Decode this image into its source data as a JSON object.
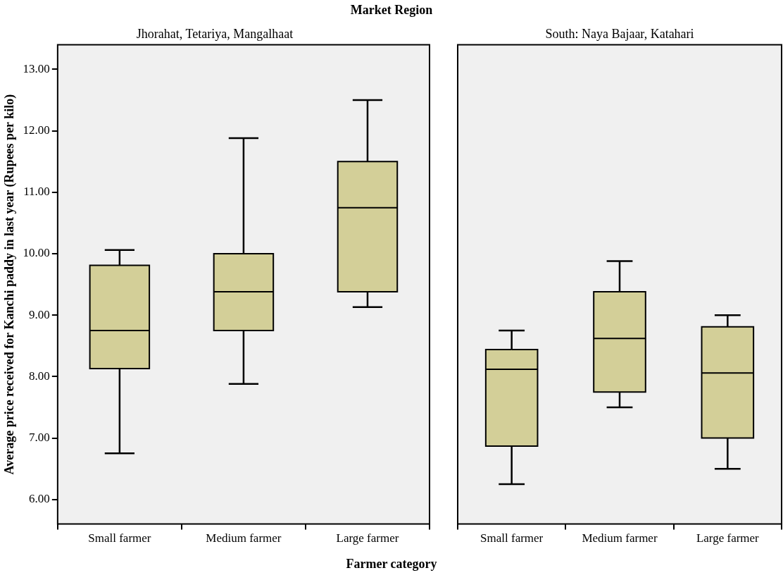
{
  "chart_data": [
    {
      "type": "box",
      "title": "Jhorahat, Tetariya, Mangalhaat",
      "annotations": [
        "Market Region"
      ],
      "xlabel": "Farmer category",
      "ylabel": "Average price received for Kanchi paddy in last year (Rupees per kilo)",
      "categories": [
        "Small farmer",
        "Medium farmer",
        "Large farmer"
      ],
      "ylim": [
        5.6,
        13.4
      ],
      "yticks": [
        {
          "value": 6,
          "label": "6.00"
        },
        {
          "value": 7,
          "label": "7.00"
        },
        {
          "value": 8,
          "label": "8.00"
        },
        {
          "value": 9,
          "label": "9.00"
        },
        {
          "value": 10,
          "label": "10.00"
        },
        {
          "value": 11,
          "label": "11.00"
        },
        {
          "value": 12,
          "label": "12.00"
        },
        {
          "value": 13,
          "label": "13.00"
        }
      ],
      "series": [
        {
          "color": "#d3cf98",
          "boxes": [
            {
              "low": 6.75,
              "q1": 8.13,
              "median": 8.75,
              "q3": 9.81,
              "high": 10.06
            },
            {
              "low": 7.88,
              "q1": 8.75,
              "median": 9.38,
              "q3": 10.0,
              "high": 11.88
            },
            {
              "low": 9.13,
              "q1": 9.38,
              "median": 10.75,
              "q3": 11.5,
              "high": 12.5
            }
          ]
        }
      ]
    },
    {
      "type": "box",
      "title": "South: Naya Bajaar, Katahari",
      "categories": [
        "Small farmer",
        "Medium farmer",
        "Large farmer"
      ],
      "ylim": [
        5.6,
        13.4
      ],
      "tick_labels": "x",
      "series": [
        {
          "color": "#d3cf98",
          "boxes": [
            {
              "low": 6.25,
              "q1": 6.87,
              "median": 8.12,
              "q3": 8.44,
              "high": 8.75
            },
            {
              "low": 7.5,
              "q1": 7.75,
              "median": 8.62,
              "q3": 9.38,
              "high": 9.88
            },
            {
              "low": 6.5,
              "q1": 7.0,
              "median": 8.06,
              "q3": 8.81,
              "high": 9.0
            }
          ]
        }
      ]
    }
  ]
}
